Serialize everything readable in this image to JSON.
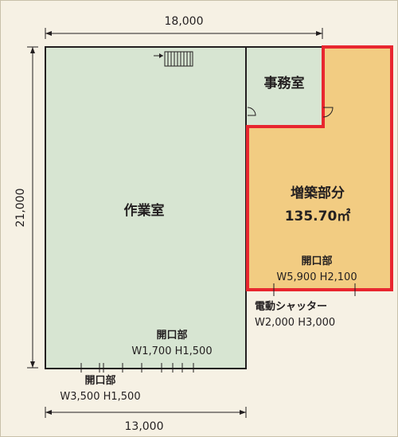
{
  "dimensions": {
    "top_width": "18,000",
    "left_height": "21,000",
    "bottom_width": "13,000"
  },
  "rooms": {
    "workroom": "作業室",
    "office": "事務室",
    "extension": "増築部分",
    "extension_area": "135.70㎡"
  },
  "openings": {
    "extension_opening_title": "開口部",
    "extension_opening_size": "W5,900 H2,100",
    "shutter_title": "電動シャッター",
    "shutter_size": "W2,000 H3,000",
    "work_opening_title": "開口部",
    "work_opening_size": "W1,700 H1,500",
    "bottom_opening_title": "開口部",
    "bottom_opening_size": "W3,500 H1,500"
  },
  "colors": {
    "workroom_fill": "#d7e5d2",
    "office_fill": "#d7e5d2",
    "extension_fill": "#f2cc82",
    "extension_border": "#e8262f",
    "line": "#231f20"
  }
}
